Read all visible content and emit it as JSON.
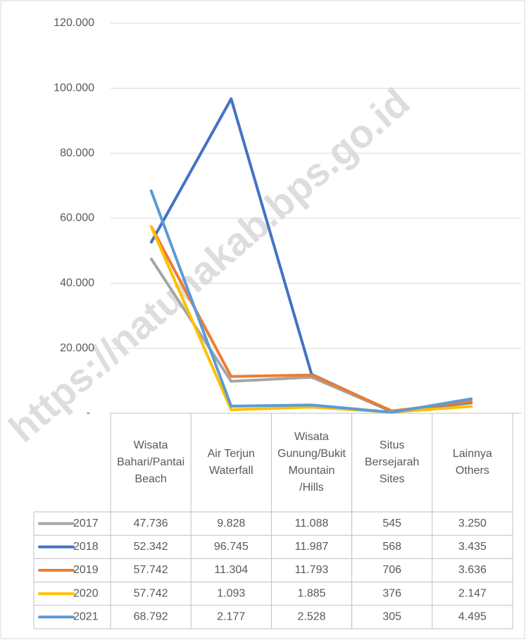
{
  "chart_data": {
    "type": "line",
    "categories": [
      "Wisata Bahari/Pantai Beach",
      "Air Terjun Waterfall",
      "Wisata Gunung/Bukit Mountain /Hills",
      "Situs Bersejarah Sites",
      "Lainnya Others"
    ],
    "series": [
      {
        "name": "2017",
        "color": "#a5a5a5",
        "values": [
          47736,
          9828,
          11088,
          545,
          3250
        ],
        "value_labels": [
          "47.736",
          "9.828",
          "11.088",
          "545",
          "3.250"
        ]
      },
      {
        "name": "2018",
        "color": "#4472c4",
        "values": [
          52342,
          96745,
          11987,
          568,
          3435
        ],
        "value_labels": [
          "52.342",
          "96.745",
          "11.987",
          "568",
          "3.435"
        ]
      },
      {
        "name": "2019",
        "color": "#ed7d31",
        "values": [
          57742,
          11304,
          11793,
          706,
          3636
        ],
        "value_labels": [
          "57.742",
          "11.304",
          "11.793",
          "706",
          "3.636"
        ]
      },
      {
        "name": "2020",
        "color": "#ffc000",
        "values": [
          57742,
          1093,
          1885,
          376,
          2147
        ],
        "value_labels": [
          "57.742",
          "1.093",
          "1.885",
          "376",
          "2.147"
        ]
      },
      {
        "name": "2021",
        "color": "#5b9bd5",
        "values": [
          68792,
          2177,
          2528,
          305,
          4495
        ],
        "value_labels": [
          "68.792",
          "2.177",
          "2.528",
          "305",
          "4.495"
        ]
      }
    ],
    "ylim": [
      0,
      120000
    ],
    "yticks": [
      {
        "value": 0,
        "label": "-"
      },
      {
        "value": 20000,
        "label": "20.000"
      },
      {
        "value": 40000,
        "label": "40.000"
      },
      {
        "value": 60000,
        "label": "60.000"
      },
      {
        "value": 80000,
        "label": "80.000"
      },
      {
        "value": 100000,
        "label": "100.000"
      },
      {
        "value": 120000,
        "label": "120.000"
      }
    ],
    "grid": true,
    "watermark": "https://natunakab.bps.go.id"
  }
}
